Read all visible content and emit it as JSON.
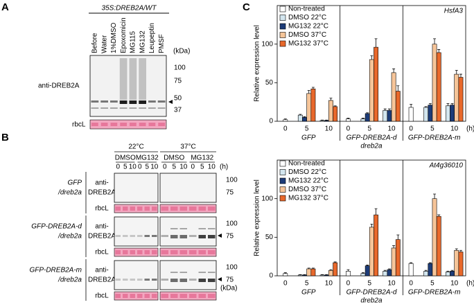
{
  "panel_a": {
    "letter": "A",
    "genotype": "35S:DREB2A/WT",
    "lanes": [
      "Before",
      "Water",
      "1%DMSO",
      "Epoxomicin",
      "MG115",
      "MG132",
      "Leupeptin",
      "PMSF"
    ],
    "unit": "(kDa)",
    "markers": [
      "100",
      "75",
      "50",
      "37"
    ],
    "antibody": "anti-DREB2A",
    "loading": "rbcL"
  },
  "panel_b": {
    "letter": "B",
    "temperatures": [
      "22°C",
      "37°C"
    ],
    "treatments": [
      "DMSO",
      "MG132",
      "DMSO",
      "MG132"
    ],
    "times": [
      "0",
      "5",
      "10"
    ],
    "time_unit": "(h)",
    "loading": "rbcL",
    "unit": "(kDa)",
    "rows": [
      {
        "genotype": [
          "GFP",
          "/dreb2a"
        ],
        "antibody": [
          "anti-",
          "DREB2A"
        ],
        "markers": [
          "100",
          "75"
        ]
      },
      {
        "genotype": [
          "GFP-DREB2A-d",
          "/dreb2a"
        ],
        "antibody": [
          "anti-",
          "DREB2A"
        ],
        "markers": [
          "100",
          "75"
        ]
      },
      {
        "genotype": [
          "GFP-DREB2A-m",
          "/dreb2a"
        ],
        "antibody": [
          "anti-",
          "DREB2A"
        ],
        "markers": [
          "100",
          "75"
        ]
      }
    ]
  },
  "panel_c": {
    "letter": "C"
  },
  "chart_data": [
    {
      "type": "bar",
      "title": "HsfA3",
      "ylabel": "Relative expression level",
      "xlabel": "(h)",
      "groups": [
        "GFP",
        "GFP-DREB2A-d",
        "GFP-DREB2A-m"
      ],
      "group_label": "dreb2a",
      "categories": [
        "0",
        "5",
        "10",
        "0",
        "5",
        "10",
        "0",
        "5",
        "10"
      ],
      "ylim": [
        0,
        150
      ],
      "yticks": [
        0,
        50,
        100
      ],
      "series": [
        {
          "name": "Non-treated",
          "color": "#ffffff",
          "values": [
            2,
            null,
            null,
            3,
            null,
            null,
            18,
            null,
            null
          ],
          "errors": [
            1,
            null,
            null,
            1,
            null,
            null,
            4,
            null,
            null
          ]
        },
        {
          "name": "DMSO 22°C",
          "color": "#d3e6ef",
          "values": [
            null,
            8,
            1,
            null,
            3,
            14,
            null,
            18,
            20
          ],
          "errors": [
            null,
            1,
            0.5,
            null,
            1,
            2,
            null,
            1,
            3
          ]
        },
        {
          "name": "MG132 22°C",
          "color": "#1d3c78",
          "values": [
            null,
            5,
            1,
            null,
            10,
            14,
            null,
            21,
            21
          ],
          "errors": [
            null,
            1,
            0.5,
            null,
            1,
            2,
            null,
            2,
            2
          ]
        },
        {
          "name": "DMSO 37°C",
          "color": "#f6c599",
          "values": [
            null,
            36,
            27,
            null,
            80,
            63,
            null,
            100,
            61
          ],
          "errors": [
            null,
            4,
            3,
            null,
            5,
            5,
            null,
            7,
            5
          ]
        },
        {
          "name": "MG132 37°C",
          "color": "#e8682b",
          "values": [
            null,
            42,
            19,
            null,
            96,
            39,
            null,
            89,
            57
          ],
          "errors": [
            null,
            2,
            1,
            null,
            11,
            7,
            null,
            4,
            4
          ]
        }
      ]
    },
    {
      "type": "bar",
      "title": "At4g36010",
      "ylabel": "Relative expression level",
      "xlabel": "(h)",
      "groups": [
        "GFP",
        "GFP-DREB2A-d",
        "GFP-DREB2A-m"
      ],
      "group_label": "dreb2a",
      "categories": [
        "0",
        "5",
        "10",
        "0",
        "5",
        "10",
        "0",
        "5",
        "10"
      ],
      "ylim": [
        0,
        150
      ],
      "yticks": [
        0,
        50,
        100
      ],
      "series": [
        {
          "name": "Non-treated",
          "color": "#ffffff",
          "values": [
            3,
            null,
            null,
            6,
            null,
            null,
            16,
            null,
            null
          ],
          "errors": [
            1,
            null,
            null,
            2,
            null,
            null,
            1,
            null,
            null
          ]
        },
        {
          "name": "DMSO 22°C",
          "color": "#d3e6ef",
          "values": [
            null,
            1,
            1,
            null,
            3,
            6,
            null,
            6,
            5
          ],
          "errors": [
            null,
            0.5,
            0.5,
            null,
            1,
            1,
            null,
            1,
            1
          ]
        },
        {
          "name": "MG132 22°C",
          "color": "#1d3c78",
          "values": [
            null,
            1,
            1,
            null,
            13,
            8,
            null,
            16,
            6
          ],
          "errors": [
            null,
            0.5,
            0.5,
            null,
            1,
            1,
            null,
            1,
            1
          ]
        },
        {
          "name": "DMSO 37°C",
          "color": "#f6c599",
          "values": [
            null,
            9,
            7,
            null,
            63,
            36,
            null,
            100,
            33
          ],
          "errors": [
            null,
            1,
            1,
            null,
            4,
            3,
            null,
            6,
            2
          ]
        },
        {
          "name": "MG132 37°C",
          "color": "#e8682b",
          "values": [
            null,
            9,
            17,
            null,
            79,
            47,
            null,
            77,
            31
          ],
          "errors": [
            null,
            1,
            1,
            null,
            8,
            6,
            null,
            2,
            2
          ]
        }
      ]
    }
  ]
}
